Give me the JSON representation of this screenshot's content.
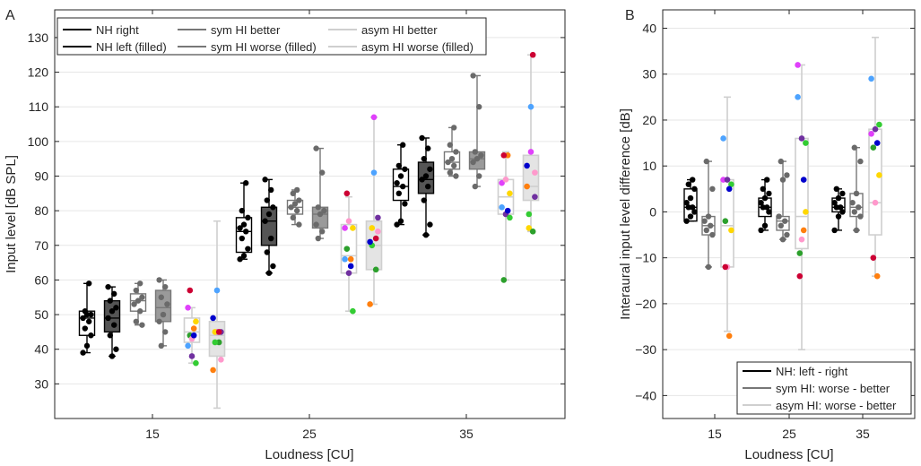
{
  "chart_data": [
    {
      "panel_label": "A",
      "type": "box",
      "xlabel": "Loudness [CU]",
      "ylabel": "Input level [dB SPL]",
      "categories": [
        "15",
        "25",
        "35"
      ],
      "yticks": [
        30,
        40,
        50,
        60,
        70,
        80,
        90,
        100,
        110,
        120,
        130
      ],
      "ylim": [
        20,
        138
      ],
      "grid": true,
      "legend_position": "top-left",
      "legend": [
        "NH right",
        "NH left (filled)",
        "sym HI better",
        "sym HI worse (filled)",
        "asym HI better",
        "asym HI worse (filled)"
      ],
      "series": [
        {
          "name": "NH right",
          "color": "#000000",
          "filled": false,
          "groups": [
            {
              "cu": "15",
              "box": [
                39,
                44,
                49,
                51,
                59
              ],
              "points": [
                39,
                41,
                44,
                46,
                48,
                49,
                50,
                50,
                51,
                59
              ]
            },
            {
              "cu": "25",
              "box": [
                66,
                68,
                74,
                78,
                88
              ],
              "points": [
                66,
                67,
                69,
                72,
                74,
                75,
                76,
                78,
                80,
                88
              ]
            },
            {
              "cu": "35",
              "box": [
                76,
                83,
                87,
                92,
                99
              ],
              "points": [
                76,
                77,
                82,
                85,
                87,
                88,
                90,
                92,
                93,
                99
              ]
            }
          ]
        },
        {
          "name": "NH left (filled)",
          "color": "#000000",
          "filled": true,
          "groups": [
            {
              "cu": "15",
              "box": [
                38,
                45,
                49,
                54,
                58
              ],
              "points": [
                38,
                40,
                44,
                47,
                49,
                51,
                52,
                54,
                56,
                58
              ]
            },
            {
              "cu": "25",
              "box": [
                62,
                70,
                77,
                81,
                89
              ],
              "points": [
                62,
                64,
                68,
                72,
                77,
                79,
                81,
                83,
                86,
                89
              ]
            },
            {
              "cu": "35",
              "box": [
                73,
                85,
                89,
                94,
                101
              ],
              "points": [
                73,
                76,
                83,
                87,
                89,
                90,
                92,
                95,
                98,
                101
              ]
            }
          ]
        },
        {
          "name": "sym HI better",
          "color": "#777777",
          "filled": false,
          "groups": [
            {
              "cu": "15",
              "box": [
                47,
                51,
                54,
                56,
                59
              ],
              "points": [
                47,
                48,
                51,
                53,
                54,
                55,
                57,
                59
              ]
            },
            {
              "cu": "25",
              "box": [
                76,
                79,
                81,
                83,
                86
              ],
              "points": [
                76,
                78,
                80,
                81,
                82,
                83,
                85,
                86
              ]
            },
            {
              "cu": "35",
              "box": [
                90,
                92,
                94,
                97,
                104
              ],
              "points": [
                90,
                91,
                93,
                94,
                95,
                97,
                99,
                104
              ]
            }
          ]
        },
        {
          "name": "sym HI worse (filled)",
          "color": "#777777",
          "filled": true,
          "groups": [
            {
              "cu": "15",
              "box": [
                41,
                48,
                52,
                57,
                60
              ],
              "points": [
                41,
                45,
                48,
                50,
                53,
                55,
                58,
                60
              ]
            },
            {
              "cu": "25",
              "box": [
                72,
                75,
                79,
                81,
                98
              ],
              "points": [
                72,
                74,
                76,
                79,
                80,
                81,
                91,
                98
              ]
            },
            {
              "cu": "35",
              "box": [
                87,
                92,
                95,
                97,
                119
              ],
              "points": [
                87,
                90,
                94,
                95,
                96,
                97,
                110,
                119
              ]
            }
          ]
        },
        {
          "name": "asym HI better",
          "color": "#cfcfcf",
          "filled": false,
          "groups": [
            {
              "cu": "15",
              "box": [
                36,
                42,
                45,
                49,
                52
              ]
            },
            {
              "cu": "25",
              "box": [
                51,
                62,
                67,
                76,
                84
              ]
            },
            {
              "cu": "35",
              "box": [
                60,
                79,
                84,
                89,
                97
              ]
            }
          ]
        },
        {
          "name": "asym HI worse (filled)",
          "color": "#cfcfcf",
          "filled": true,
          "groups": [
            {
              "cu": "15",
              "box": [
                23,
                38,
                44,
                48,
                77
              ]
            },
            {
              "cu": "25",
              "box": [
                53,
                63,
                70,
                77,
                107
              ]
            },
            {
              "cu": "35",
              "box": [
                74,
                83,
                87,
                96,
                125
              ]
            }
          ]
        }
      ],
      "asym_points": {
        "colors": [
          "#e040fb",
          "#7030a0",
          "#ffd700",
          "#2ca02c",
          "#ff7f0e",
          "#4da3ff",
          "#ff99cc",
          "#33cc33",
          "#cc0033",
          "#0000cc"
        ],
        "better": [
          {
            "cu": "15",
            "y": [
              52,
              38,
              48,
              44,
              46,
              41,
              43,
              36,
              57,
              44
            ]
          },
          {
            "cu": "25",
            "y": [
              75,
              62,
              75,
              69,
              66,
              66,
              77,
              51,
              85,
              64
            ]
          },
          {
            "cu": "35",
            "y": [
              88,
              79,
              85,
              60,
              96,
              81,
              89,
              78,
              96,
              80
            ]
          }
        ],
        "worse": [
          {
            "cu": "15",
            "y": [
              45,
              45,
              45,
              42,
              34,
              57,
              37,
              42,
              45,
              49
            ]
          },
          {
            "cu": "25",
            "y": [
              107,
              78,
              75,
              63,
              53,
              91,
              74,
              70,
              72,
              71
            ]
          },
          {
            "cu": "35",
            "y": [
              97,
              84,
              75,
              74,
              87,
              110,
              91,
              79,
              125,
              93
            ]
          }
        ]
      }
    },
    {
      "panel_label": "B",
      "type": "box",
      "xlabel": "Loudness [CU]",
      "ylabel": "Interaural input level difference [dB]",
      "categories": [
        "15",
        "25",
        "35"
      ],
      "yticks": [
        -40,
        -30,
        -20,
        -10,
        0,
        10,
        20,
        30,
        40
      ],
      "ylim": [
        -45,
        44
      ],
      "grid": true,
      "legend_position": "bottom-right",
      "legend": [
        "NH: left - right",
        "sym HI:  worse - better",
        "asym HI:  worse - better"
      ],
      "series": [
        {
          "name": "NH: left - right",
          "color": "#000000",
          "groups": [
            {
              "cu": "15",
              "box": [
                -2,
                -2,
                1,
                5,
                7
              ],
              "points": [
                -2,
                -1,
                0,
                1,
                1,
                2,
                3,
                5,
                6,
                7
              ]
            },
            {
              "cu": "25",
              "box": [
                -4,
                -1,
                1,
                3,
                7
              ],
              "points": [
                -4,
                -3,
                0,
                1,
                1,
                2,
                3,
                4,
                5,
                7
              ]
            },
            {
              "cu": "35",
              "box": [
                -4,
                0,
                1,
                3,
                5
              ],
              "points": [
                -4,
                -1,
                0,
                1,
                1,
                2,
                3,
                4,
                5
              ]
            }
          ]
        },
        {
          "name": "sym HI:  worse - better",
          "color": "#777777",
          "groups": [
            {
              "cu": "15",
              "box": [
                -12,
                -5,
                -3,
                -1,
                11
              ],
              "points": [
                -12,
                -5,
                -4,
                -3,
                -2,
                -1,
                5,
                11
              ]
            },
            {
              "cu": "25",
              "box": [
                -6,
                -4,
                -2,
                -1,
                11
              ],
              "points": [
                -6,
                -5,
                -3,
                -2,
                -1,
                7,
                8,
                11
              ]
            },
            {
              "cu": "35",
              "box": [
                -4,
                -1,
                1,
                4,
                14
              ],
              "points": [
                -4,
                -1,
                0,
                1,
                2,
                4,
                11,
                14
              ]
            }
          ]
        },
        {
          "name": "asym HI:  worse - better",
          "color": "#cfcfcf",
          "groups": [
            {
              "cu": "15",
              "box": [
                -26,
                -12,
                -3,
                7,
                25
              ]
            },
            {
              "cu": "25",
              "box": [
                -30,
                -8,
                -1,
                16,
                32
              ]
            },
            {
              "cu": "35",
              "box": [
                -14,
                -5,
                2,
                18,
                38
              ]
            }
          ]
        }
      ],
      "asym_points": {
        "colors": [
          "#e040fb",
          "#7030a0",
          "#ffd700",
          "#2ca02c",
          "#ff7f0e",
          "#4da3ff",
          "#ff99cc",
          "#33cc33",
          "#cc0033",
          "#0000cc"
        ],
        "diff": [
          {
            "cu": "15",
            "y": [
              7,
              7,
              -4,
              -2,
              -27,
              16,
              -12,
              6,
              -12,
              5
            ]
          },
          {
            "cu": "25",
            "y": [
              32,
              16,
              0,
              -9,
              -4,
              25,
              -6,
              15,
              -14,
              7
            ]
          },
          {
            "cu": "35",
            "y": [
              17,
              18,
              8,
              14,
              -14,
              29,
              2,
              19,
              -10,
              15
            ]
          }
        ]
      }
    }
  ]
}
